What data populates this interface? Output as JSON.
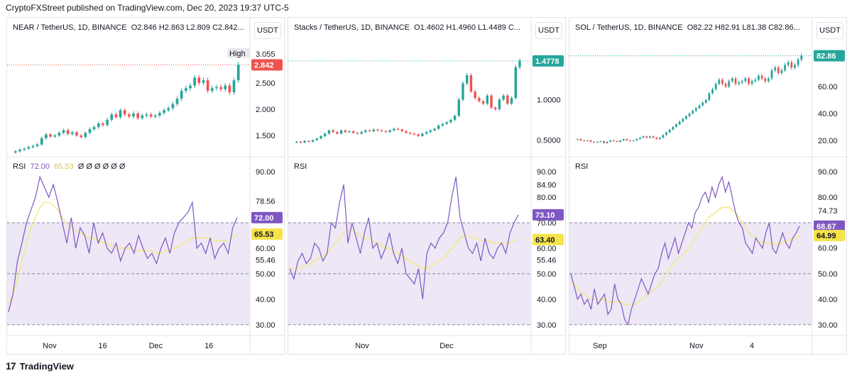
{
  "header": {
    "text": "CryptoFXStreet published on TradingView.com, Dec 20, 2023 19:37 UTC-5"
  },
  "footer": {
    "brand": "TradingView",
    "logo": "tradingview-logo-icon"
  },
  "colors": {
    "up": "#26a69a",
    "down": "#ef5350",
    "rsi": "#7e57c2",
    "rsi_ma": "#f5e97a",
    "rsi_band": "#ede7f6",
    "grid": "#f0f3fa"
  },
  "chart_data": [
    {
      "type": "candlestick",
      "symbol": "NEAR / TetherUS, 1D, BINANCE",
      "ohlc_text": "O2.846  H2.863  L2.809  C2.842...",
      "quote_label": "USDT",
      "price_ticks": [
        "3.055",
        "2.500",
        "2.000",
        "1.500"
      ],
      "price_tick_values": [
        3.055,
        2.5,
        2.0,
        1.5
      ],
      "ylim": [
        1.15,
        3.2
      ],
      "high_label": "High",
      "last_price": "2.842",
      "last_value": 2.842,
      "x_ticks": [
        "Nov",
        "16",
        "Dec",
        "16"
      ],
      "x_tick_pos": [
        0.17,
        0.39,
        0.61,
        0.83
      ],
      "closes": [
        1.2,
        1.23,
        1.25,
        1.28,
        1.3,
        1.33,
        1.45,
        1.52,
        1.48,
        1.5,
        1.55,
        1.6,
        1.53,
        1.56,
        1.5,
        1.47,
        1.55,
        1.62,
        1.66,
        1.73,
        1.7,
        1.8,
        1.9,
        1.85,
        1.98,
        1.9,
        1.86,
        1.92,
        1.83,
        1.88,
        1.9,
        1.86,
        1.88,
        1.93,
        1.98,
        2.02,
        2.1,
        2.2,
        2.35,
        2.4,
        2.45,
        2.6,
        2.5,
        2.55,
        2.35,
        2.4,
        2.42,
        2.38,
        2.45,
        2.32,
        2.55,
        2.842
      ],
      "rsi": {
        "label": "RSI",
        "value_text": "72.00",
        "ma_text": "65.53",
        "placeholders": "Ø Ø Ø Ø Ø Ø",
        "ticks": [
          "90.00",
          "78.56",
          "60.00",
          "55.46",
          "50.00",
          "40.00",
          "30.00"
        ],
        "tick_values": [
          90,
          78.56,
          60,
          55.46,
          50,
          40,
          30
        ],
        "value": 72.0,
        "ma": 65.53,
        "values": [
          35,
          42,
          55,
          62,
          70,
          75,
          80,
          88,
          84,
          80,
          85,
          78,
          70,
          62,
          72,
          60,
          68,
          65,
          58,
          70,
          62,
          66,
          60,
          58,
          62,
          55,
          60,
          62,
          58,
          65,
          60,
          56,
          58,
          54,
          60,
          64,
          58,
          66,
          70,
          72,
          74,
          78,
          60,
          62,
          58,
          64,
          56,
          60,
          62,
          58,
          68,
          72
        ],
        "ma_values": [
          38,
          42,
          48,
          55,
          62,
          68,
          72,
          76,
          78,
          78,
          77,
          75,
          72,
          70,
          68,
          67,
          66,
          65,
          64,
          64,
          63,
          62,
          62,
          61,
          61,
          60,
          60,
          60,
          59,
          59,
          59,
          59,
          59,
          58,
          58,
          59,
          59,
          60,
          61,
          62,
          63,
          64,
          64,
          64,
          64,
          64,
          63,
          63,
          63,
          63,
          64,
          65.53
        ]
      }
    },
    {
      "type": "candlestick",
      "symbol": "Stacks / TetherUS, 1D, BINANCE",
      "ohlc_text": "O1.4602  H1.4960  L1.4489  C...",
      "quote_label": "USDT",
      "price_ticks": [
        "1.0000",
        "0.5000"
      ],
      "price_tick_values": [
        1.0,
        0.5
      ],
      "ylim": [
        0.33,
        1.66
      ],
      "last_price": "1.4778",
      "last_value": 1.4778,
      "x_ticks": [
        "Nov",
        "Dec"
      ],
      "x_tick_pos": [
        0.3,
        0.65
      ],
      "closes": [
        0.48,
        0.47,
        0.49,
        0.48,
        0.5,
        0.52,
        0.55,
        0.58,
        0.62,
        0.6,
        0.58,
        0.62,
        0.6,
        0.61,
        0.59,
        0.58,
        0.6,
        0.62,
        0.61,
        0.63,
        0.62,
        0.61,
        0.6,
        0.62,
        0.64,
        0.63,
        0.61,
        0.59,
        0.58,
        0.57,
        0.55,
        0.58,
        0.6,
        0.62,
        0.64,
        0.68,
        0.7,
        0.72,
        0.75,
        0.8,
        1.0,
        1.2,
        1.3,
        1.1,
        1.02,
        0.98,
        0.95,
        1.05,
        0.9,
        0.88,
        1.0,
        1.05,
        0.95,
        1.02,
        1.4,
        1.4778
      ],
      "rsi": {
        "label": "RSI",
        "value_text": "73.10",
        "ma_text": "63.40",
        "ticks": [
          "90.00",
          "84.90",
          "80.00",
          "70.00",
          "60.00",
          "55.46",
          "50.00",
          "40.00",
          "30.00"
        ],
        "tick_values": [
          90,
          84.9,
          80,
          70,
          60,
          55.46,
          50,
          40,
          30
        ],
        "value": 73.1,
        "ma": 63.4,
        "values": [
          52,
          48,
          55,
          58,
          54,
          56,
          62,
          60,
          55,
          58,
          70,
          68,
          78,
          85,
          62,
          70,
          64,
          58,
          66,
          72,
          60,
          62,
          56,
          60,
          66,
          58,
          54,
          60,
          50,
          48,
          46,
          52,
          40,
          58,
          62,
          60,
          64,
          66,
          70,
          80,
          88,
          72,
          66,
          60,
          58,
          62,
          55,
          64,
          58,
          56,
          60,
          62,
          58,
          66,
          70,
          73.1
        ],
        "ma_values": [
          52,
          52,
          52,
          53,
          53,
          54,
          55,
          56,
          57,
          58,
          60,
          62,
          64,
          66,
          67,
          67,
          66,
          65,
          64,
          64,
          63,
          62,
          61,
          60,
          60,
          59,
          58,
          57,
          56,
          55,
          54,
          53,
          52,
          52,
          53,
          54,
          55,
          56,
          58,
          60,
          62,
          64,
          65,
          65,
          64,
          64,
          63,
          63,
          63,
          62,
          62,
          62,
          62,
          62,
          63,
          63.4
        ]
      }
    },
    {
      "type": "candlestick",
      "symbol": "SOL / TetherUS, 1D, BINANCE",
      "ohlc_text": "O82.22  H82.91  L81.38  C82.86...",
      "quote_label": "USDT",
      "price_ticks": [
        "60.00",
        "40.00",
        "20.00"
      ],
      "price_tick_values": [
        60,
        40,
        20
      ],
      "ylim": [
        10,
        90
      ],
      "last_price": "82.86",
      "last_value": 82.86,
      "x_ticks": [
        "Sep",
        "Nov",
        "4"
      ],
      "x_tick_pos": [
        0.12,
        0.52,
        0.75
      ],
      "closes": [
        21,
        20,
        19.5,
        20,
        19,
        18.5,
        19,
        19.5,
        18,
        19,
        20,
        19.5,
        19,
        20,
        21,
        20,
        19.5,
        20,
        21,
        22,
        23,
        22,
        23,
        22,
        21,
        22,
        24,
        26,
        28,
        30,
        32,
        34,
        36,
        38,
        40,
        42,
        44,
        46,
        48,
        50,
        55,
        58,
        62,
        65,
        62,
        60,
        64,
        66,
        62,
        63,
        64,
        66,
        62,
        64,
        65,
        68,
        66,
        64,
        66,
        72,
        74,
        70,
        72,
        76,
        78,
        74,
        76,
        80,
        82.86
      ],
      "rsi": {
        "label": "RSI",
        "value_text": "68.67",
        "ma_text": "64.99",
        "ticks": [
          "90.00",
          "80.00",
          "74.73",
          "60.09",
          "50.00",
          "40.00",
          "30.00"
        ],
        "tick_values": [
          90,
          80,
          74.73,
          60.09,
          50,
          40,
          30
        ],
        "value": 68.67,
        "ma": 64.99,
        "values": [
          50,
          45,
          40,
          42,
          38,
          40,
          36,
          44,
          38,
          40,
          42,
          34,
          36,
          46,
          40,
          38,
          32,
          30,
          36,
          40,
          44,
          48,
          45,
          42,
          46,
          50,
          52,
          58,
          62,
          56,
          60,
          64,
          58,
          62,
          66,
          70,
          68,
          74,
          76,
          80,
          82,
          78,
          84,
          80,
          85,
          88,
          82,
          86,
          80,
          74,
          70,
          68,
          62,
          60,
          58,
          64,
          62,
          60,
          66,
          70,
          60,
          58,
          62,
          66,
          62,
          60,
          64,
          66,
          68.67
        ],
        "ma_values": [
          48,
          46,
          44,
          43,
          42,
          41,
          40,
          40,
          40,
          40,
          40,
          39,
          39,
          39,
          39,
          39,
          38,
          38,
          38,
          38,
          39,
          40,
          41,
          42,
          43,
          44,
          45,
          47,
          49,
          51,
          53,
          55,
          56,
          57,
          58,
          60,
          62,
          64,
          66,
          68,
          70,
          72,
          73,
          74,
          75,
          76,
          76,
          76,
          75,
          74,
          72,
          70,
          68,
          66,
          65,
          64,
          63,
          62,
          62,
          62,
          62,
          61,
          62,
          62,
          63,
          63,
          64,
          64,
          64.99
        ]
      }
    }
  ]
}
